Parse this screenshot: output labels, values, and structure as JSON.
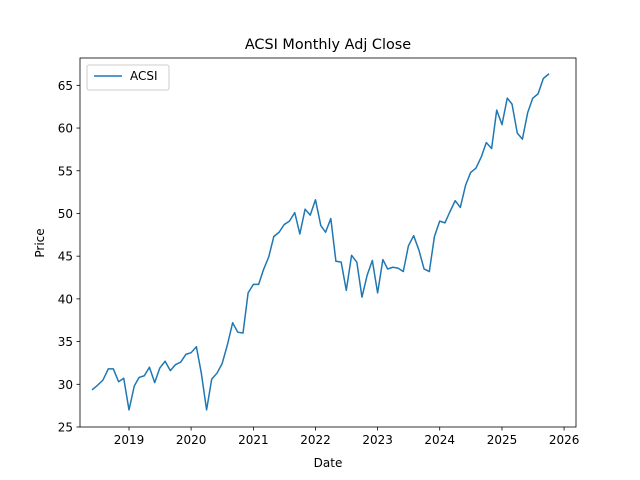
{
  "chart_data": {
    "type": "line",
    "title": "ACSI Monthly Adj Close",
    "xlabel": "Date",
    "ylabel": "Price",
    "xlim": [
      "2018-03-19",
      "2026-03-12"
    ],
    "ylim": [
      25,
      68.2
    ],
    "x_ticks": [
      "2019",
      "2020",
      "2021",
      "2022",
      "2023",
      "2024",
      "2025",
      "2026"
    ],
    "y_ticks": [
      25,
      30,
      35,
      40,
      45,
      50,
      55,
      60,
      65
    ],
    "grid": false,
    "legend": {
      "position": "top-left"
    },
    "series": [
      {
        "name": "ACSI",
        "color": "#1f77b4",
        "x": [
          "2018-06-01",
          "2018-07-01",
          "2018-08-01",
          "2018-09-01",
          "2018-10-01",
          "2018-11-01",
          "2018-12-01",
          "2019-01-01",
          "2019-02-01",
          "2019-03-01",
          "2019-04-01",
          "2019-05-01",
          "2019-06-01",
          "2019-07-01",
          "2019-08-01",
          "2019-09-01",
          "2019-10-01",
          "2019-11-01",
          "2019-12-01",
          "2020-01-01",
          "2020-02-01",
          "2020-03-01",
          "2020-04-01",
          "2020-05-01",
          "2020-06-01",
          "2020-07-01",
          "2020-08-01",
          "2020-09-01",
          "2020-10-01",
          "2020-11-01",
          "2020-12-01",
          "2021-01-01",
          "2021-02-01",
          "2021-03-01",
          "2021-04-01",
          "2021-05-01",
          "2021-06-01",
          "2021-07-01",
          "2021-08-01",
          "2021-09-01",
          "2021-10-01",
          "2021-11-01",
          "2021-12-01",
          "2022-01-01",
          "2022-02-01",
          "2022-03-01",
          "2022-04-01",
          "2022-05-01",
          "2022-06-01",
          "2022-07-01",
          "2022-08-01",
          "2022-09-01",
          "2022-10-01",
          "2022-11-01",
          "2022-12-01",
          "2023-01-01",
          "2023-02-01",
          "2023-03-01",
          "2023-04-01",
          "2023-05-01",
          "2023-06-01",
          "2023-07-01",
          "2023-08-01",
          "2023-09-01",
          "2023-10-01",
          "2023-11-01",
          "2023-12-01",
          "2024-01-01",
          "2024-02-01",
          "2024-03-01",
          "2024-04-01",
          "2024-05-01",
          "2024-06-01",
          "2024-07-01",
          "2024-08-01",
          "2024-09-01",
          "2024-10-01",
          "2024-11-01",
          "2024-12-01",
          "2025-01-01",
          "2025-02-01",
          "2025-03-01",
          "2025-04-01",
          "2025-05-01",
          "2025-06-01",
          "2025-07-01",
          "2025-08-01",
          "2025-09-01",
          "2025-10-01"
        ],
        "y": [
          29.4,
          29.9,
          30.5,
          31.8,
          31.8,
          30.3,
          30.7,
          27.0,
          29.8,
          30.8,
          31.0,
          32.0,
          30.2,
          31.9,
          32.7,
          31.6,
          32.3,
          32.6,
          33.5,
          33.7,
          34.4,
          31.3,
          27.0,
          30.6,
          31.3,
          32.4,
          34.6,
          37.2,
          36.1,
          36.0,
          40.7,
          41.7,
          41.7,
          43.4,
          44.9,
          47.3,
          47.8,
          48.7,
          49.1,
          50.1,
          47.6,
          50.5,
          49.8,
          51.6,
          48.6,
          47.8,
          49.4,
          44.4,
          44.3,
          41.0,
          45.1,
          44.3,
          40.2,
          42.8,
          44.5,
          40.7,
          44.6,
          43.5,
          43.7,
          43.6,
          43.2,
          46.2,
          47.4,
          45.7,
          43.5,
          43.2,
          47.3,
          49.1,
          48.9,
          50.2,
          51.5,
          50.7,
          53.3,
          54.8,
          55.3,
          56.6,
          58.3,
          57.6,
          62.1,
          60.4,
          63.5,
          62.8,
          59.4,
          58.7,
          61.8,
          63.5,
          64.0,
          65.8,
          66.3
        ]
      }
    ]
  }
}
